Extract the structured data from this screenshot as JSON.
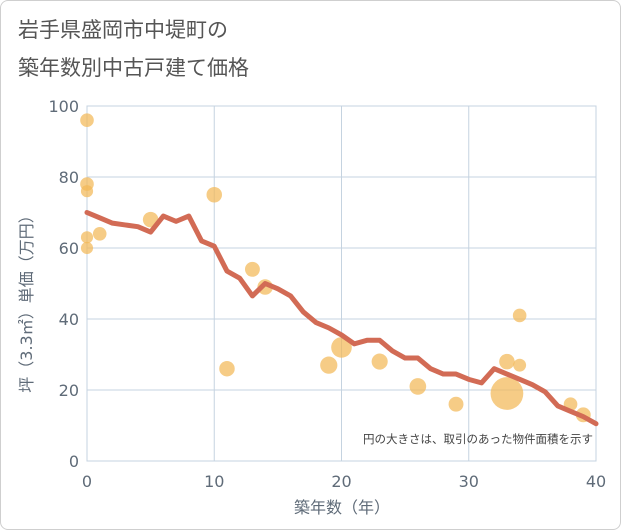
{
  "title_line1": "岩手県盛岡市中堤町の",
  "title_line2": "築年数別中古戸建て価格",
  "chart_data": {
    "type": "scatter",
    "xlabel": "築年数（年）",
    "ylabel": "坪（3.3㎡）単価（万円）",
    "xlim": [
      0,
      40
    ],
    "ylim": [
      0,
      100
    ],
    "xticks": [
      0,
      10,
      20,
      30,
      40
    ],
    "yticks": [
      0,
      20,
      40,
      60,
      80,
      100
    ],
    "grid": true,
    "note": "円の大きさは、取引のあった物件面積を示す",
    "colors": {
      "bubble": "#f2b957",
      "line": "#d26b55",
      "grid": "#c5d3e0",
      "axis_text": "#5f6b78"
    },
    "scatter": [
      {
        "x": 0,
        "y": 96,
        "size": 1
      },
      {
        "x": 0,
        "y": 78,
        "size": 1
      },
      {
        "x": 0,
        "y": 76,
        "size": 0.8
      },
      {
        "x": 0,
        "y": 63,
        "size": 0.8
      },
      {
        "x": 0,
        "y": 60,
        "size": 0.8
      },
      {
        "x": 1,
        "y": 64,
        "size": 1
      },
      {
        "x": 5,
        "y": 68,
        "size": 1.3
      },
      {
        "x": 10,
        "y": 75,
        "size": 1.3
      },
      {
        "x": 11,
        "y": 26,
        "size": 1.3
      },
      {
        "x": 13,
        "y": 54,
        "size": 1.2
      },
      {
        "x": 14,
        "y": 49,
        "size": 1.3
      },
      {
        "x": 19,
        "y": 27,
        "size": 1.6
      },
      {
        "x": 20,
        "y": 32,
        "size": 2.3
      },
      {
        "x": 23,
        "y": 28,
        "size": 1.4
      },
      {
        "x": 26,
        "y": 21,
        "size": 1.5
      },
      {
        "x": 29,
        "y": 16,
        "size": 1.2
      },
      {
        "x": 33,
        "y": 28,
        "size": 1.3
      },
      {
        "x": 33,
        "y": 19,
        "size": 5.8
      },
      {
        "x": 34,
        "y": 41,
        "size": 1
      },
      {
        "x": 34,
        "y": 27,
        "size": 0.9
      },
      {
        "x": 38,
        "y": 16,
        "size": 1
      },
      {
        "x": 39,
        "y": 13,
        "size": 1.2
      }
    ],
    "trend": {
      "x": [
        0,
        1,
        2,
        3,
        4,
        5,
        6,
        7,
        8,
        9,
        10,
        11,
        12,
        13,
        14,
        15,
        16,
        17,
        18,
        19,
        20,
        21,
        22,
        23,
        24,
        25,
        26,
        27,
        28,
        29,
        30,
        31,
        32,
        33,
        34,
        35,
        36,
        37,
        38,
        39,
        40
      ],
      "y": [
        70,
        68.5,
        67,
        66.5,
        66,
        64.5,
        69,
        67.5,
        69,
        62,
        60.5,
        53.5,
        51.5,
        46.5,
        50,
        48.5,
        46.5,
        42,
        39,
        37.5,
        35.5,
        33,
        34,
        34,
        31,
        29,
        29,
        26,
        24.5,
        24.5,
        23,
        22,
        26,
        24.5,
        23,
        21.5,
        19.5,
        15.5,
        14,
        12.5,
        10.5
      ]
    }
  }
}
